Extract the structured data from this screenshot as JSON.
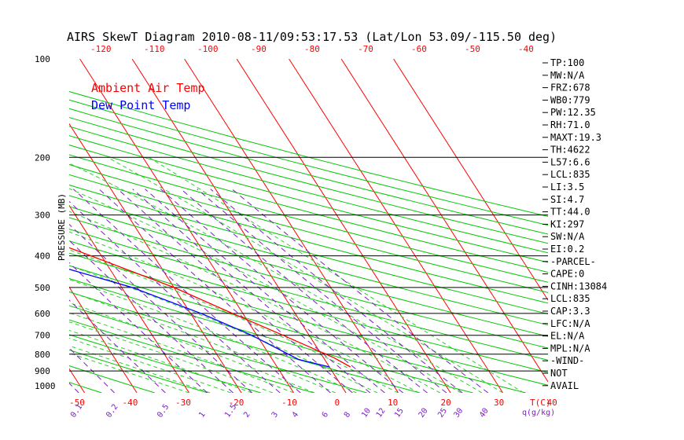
{
  "chart_data": {
    "type": "line",
    "title": "AIRS SkewT Diagram 2010-08-11/09:53:17.53 (Lat/Lon 53.09/-115.50 deg)",
    "ylabel": "PRESSURE (MB)",
    "xlabel_bottom_unit": "T(C)",
    "mixing_ratio_unit": "q(g/kg)",
    "y_scale": "log",
    "ylim": [
      1050,
      100
    ],
    "pressure_ticks": [
      "100",
      "200",
      "300",
      "400",
      "500",
      "600",
      "700",
      "800",
      "900",
      "1000"
    ],
    "pressure_lines": [
      200,
      300,
      400,
      500,
      600,
      700,
      800,
      900
    ],
    "top_temp_ticks": [
      "-120",
      "-110",
      "-100",
      "-90",
      "-80",
      "-70",
      "-60",
      "-50",
      "-40"
    ],
    "bottom_temp_ticks": [
      "-50",
      "-40",
      "-30",
      "-20",
      "-10",
      "0",
      "10",
      "20",
      "30",
      "40"
    ],
    "mixing_ratio_ticks": [
      "0.1",
      "0.2",
      "0.5",
      "1",
      "1.5",
      "2",
      "3",
      "4",
      "6",
      "8",
      "10",
      "12",
      "15",
      "20",
      "25",
      "30",
      "40"
    ],
    "legend": [
      "Ambient Air Temp",
      "Dew Point Temp"
    ],
    "series": [
      {
        "name": "Ambient Air Temp",
        "color": "#ff0000",
        "points": [
          {
            "p": 875,
            "t": 14
          },
          {
            "p": 820,
            "t": 12
          },
          {
            "p": 700,
            "t": 5
          },
          {
            "p": 600,
            "t": -2
          },
          {
            "p": 500,
            "t": -10
          },
          {
            "p": 400,
            "t": -22
          },
          {
            "p": 300,
            "t": -38
          },
          {
            "p": 250,
            "t": -47
          },
          {
            "p": 200,
            "t": -52
          },
          {
            "p": 150,
            "t": -57
          },
          {
            "p": 100,
            "t": -63
          }
        ]
      },
      {
        "name": "Dew Point Temp",
        "color": "#0000ff",
        "points": [
          {
            "p": 875,
            "t": 10
          },
          {
            "p": 830,
            "t": 5
          },
          {
            "p": 700,
            "t": -1
          },
          {
            "p": 600,
            "t": -8
          },
          {
            "p": 500,
            "t": -18
          },
          {
            "p": 400,
            "t": -35
          },
          {
            "p": 300,
            "t": -57
          },
          {
            "p": 250,
            "t": -67
          },
          {
            "p": 200,
            "t": -82
          },
          {
            "p": 150,
            "t": -102
          },
          {
            "p": 130,
            "t": -107
          },
          {
            "p": 100,
            "t": -103
          }
        ]
      }
    ]
  },
  "panel": [
    "TP:100",
    "MW:N/A",
    "FRZ:678",
    "WB0:779",
    "PW:12.35",
    "RH:71.0",
    "MAXT:19.3",
    "TH:4622",
    "L57:6.6",
    "LCL:835",
    "LI:3.5",
    "SI:4.7",
    "TT:44.0",
    "KI:297",
    "SW:N/A",
    "EI:0.2",
    "-PARCEL-",
    "CAPE:0",
    "CINH:13084",
    "LCL:835",
    "CAP:3.3",
    "LFC:N/A",
    "EL:N/A",
    "MPL:N/A",
    "-WIND-",
    "NOT",
    "AVAIL"
  ],
  "colors": {
    "isotherm": "#ff0000",
    "dry_adiabat": "#00c800",
    "moist_adiabat": "#33cc33",
    "mixing_ratio": "#7a1fc2",
    "isobar": "#000000"
  }
}
